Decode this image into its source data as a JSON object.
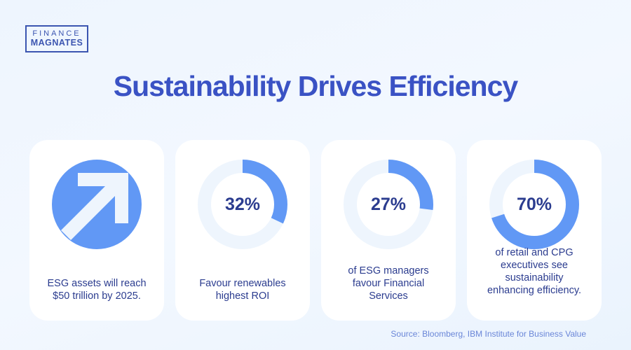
{
  "logo": {
    "line1": "FINANCE",
    "line2": "MAGNATES"
  },
  "title": "Sustainability Drives Efficiency",
  "colors": {
    "accent": "#6198f5",
    "track": "#eef5fd",
    "title": "#3a52c4",
    "text": "#2b3c8f"
  },
  "cards": [
    {
      "icon": "arrow-up-right-icon",
      "caption": [
        "ESG assets will reach",
        "$50 trillion by 2025."
      ]
    },
    {
      "percent": 32,
      "label": "32%",
      "caption": [
        "Favour renewables",
        "highest ROI"
      ]
    },
    {
      "percent": 27,
      "label": "27%",
      "caption": [
        "of ESG managers",
        "favour Financial",
        "Services"
      ]
    },
    {
      "percent": 70,
      "label": "70%",
      "caption": [
        "of retail and CPG",
        "executives see",
        "sustainability",
        "enhancing efficiency."
      ]
    }
  ],
  "source": "Source: Bloomberg, IBM Institute for Business Value"
}
